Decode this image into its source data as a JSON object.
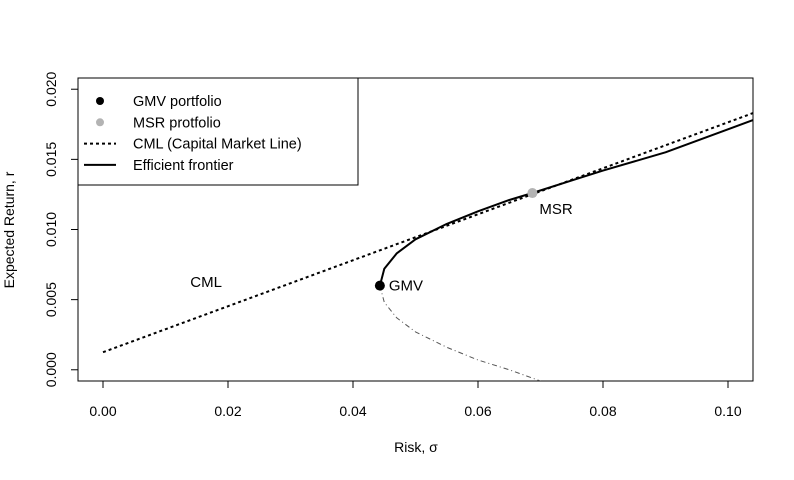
{
  "chart_data": {
    "type": "line",
    "title": "",
    "xlabel": "Risk, σ",
    "ylabel": "Expected Return,  r",
    "xlim": [
      -0.004,
      0.104
    ],
    "ylim": [
      -0.0008,
      0.0208
    ],
    "x_ticks": [
      0.0,
      0.02,
      0.04,
      0.06,
      0.08,
      0.1
    ],
    "x_tick_labels": [
      "0.00",
      "0.02",
      "0.04",
      "0.06",
      "0.08",
      "0.10"
    ],
    "y_ticks": [
      0.0,
      0.005,
      0.01,
      0.015,
      0.02
    ],
    "y_tick_labels": [
      "0.000",
      "0.005",
      "0.010",
      "0.015",
      "0.020"
    ],
    "grid": false,
    "legend_position": "top-left",
    "legend": [
      {
        "label": "GMV portfolio",
        "kind": "point",
        "color": "#000000"
      },
      {
        "label": "MSR protfolio",
        "kind": "point",
        "color": "#b3b3b3"
      },
      {
        "label": "CML (Capital  Market Line)",
        "kind": "dotted-line",
        "color": "#000000"
      },
      {
        "label": "Efficient frontier",
        "kind": "solid-line",
        "color": "#000000"
      }
    ],
    "series": [
      {
        "name": "CML (Capital  Market Line)",
        "style": "dotted",
        "color": "#000000",
        "x": [
          0.0,
          0.104
        ],
        "y": [
          0.00125,
          0.0183
        ]
      },
      {
        "name": "Efficient frontier",
        "style": "solid",
        "color": "#000000",
        "x": [
          0.0443,
          0.045,
          0.047,
          0.05,
          0.055,
          0.06,
          0.065,
          0.0687,
          0.075,
          0.08,
          0.09,
          0.104
        ],
        "y": [
          0.006,
          0.0072,
          0.0083,
          0.0093,
          0.0104,
          0.0113,
          0.0121,
          0.0126,
          0.0135,
          0.0142,
          0.0155,
          0.0178
        ]
      },
      {
        "name": "inefficient branch",
        "style": "dashdot",
        "color": "#555555",
        "x": [
          0.0443,
          0.045,
          0.047,
          0.05,
          0.055,
          0.06,
          0.065,
          0.07
        ],
        "y": [
          0.006,
          0.0048,
          0.0037,
          0.0027,
          0.0016,
          0.0007,
          0.0,
          -0.0008
        ]
      }
    ],
    "points": [
      {
        "name": "GMV",
        "x": 0.0443,
        "y": 0.006,
        "color": "#000000",
        "label": "GMV",
        "label_side": "right"
      },
      {
        "name": "MSR",
        "x": 0.0687,
        "y": 0.0126,
        "color": "#b3b3b3",
        "label": "MSR",
        "label_side": "below-right"
      }
    ],
    "annotations": [
      {
        "text": "CML",
        "x": 0.0165,
        "y": 0.0059
      }
    ]
  }
}
